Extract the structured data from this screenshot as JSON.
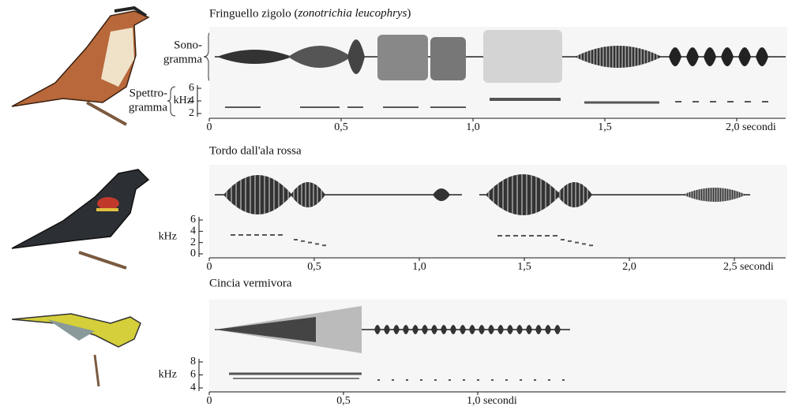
{
  "panels": [
    {
      "title": "Fringuello zigolo (",
      "species": "zonotrichia leucophrys",
      "title_end": ")",
      "sono_label": [
        "Sono-",
        "gramma"
      ],
      "spectro_label": [
        "Spettro-",
        "gramma"
      ],
      "freq_unit": "kHz",
      "freq_ticks": [
        "6",
        "4",
        "2"
      ],
      "time_ticks": [
        "0",
        "0,5",
        "1,0",
        "1,5",
        "2,0 secondi"
      ]
    },
    {
      "title": "Tordo dall'ala rossa",
      "freq_unit": "kHz",
      "freq_ticks": [
        "6",
        "4",
        "2",
        "0"
      ],
      "time_ticks": [
        "0",
        "0,5",
        "1,0",
        "1,5",
        "2,0",
        "2,5 secondi"
      ]
    },
    {
      "title": "Cincia vermivora",
      "freq_unit": "kHz",
      "freq_ticks": [
        "8",
        "6",
        "4"
      ],
      "time_ticks": [
        "0",
        "0,5",
        "1,0 secondi"
      ]
    }
  ]
}
